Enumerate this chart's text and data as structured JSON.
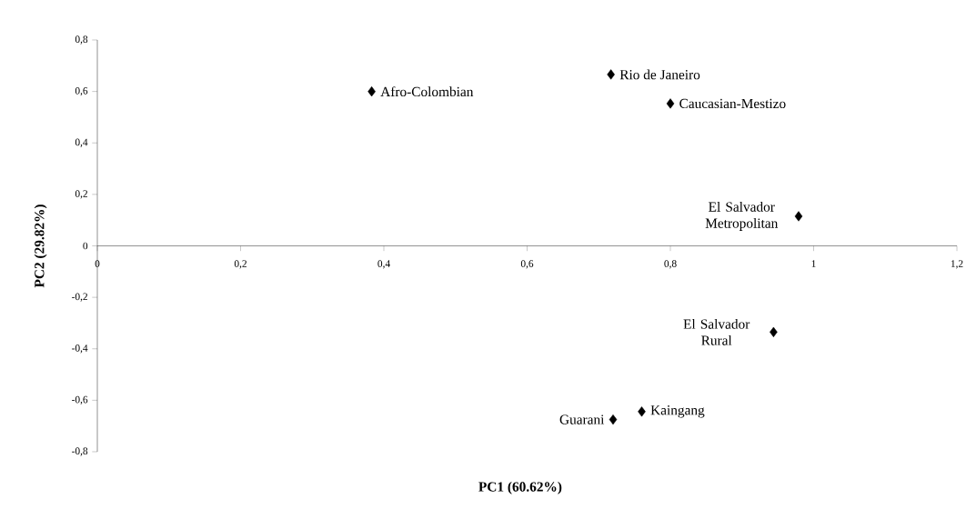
{
  "chart_data": {
    "type": "scatter",
    "xlabel": "PC1 (60.62%)",
    "ylabel": "PC2 (29.82%)",
    "color": "#000000",
    "marker": "diamond",
    "x": [
      0.383,
      0.717,
      0.8,
      0.979,
      0.944,
      0.76,
      0.72
    ],
    "values": [
      0.6,
      0.666,
      0.553,
      0.115,
      -0.335,
      -0.644,
      -0.675
    ],
    "xlim": [
      0,
      1.2
    ],
    "ylim": [
      -0.8,
      0.8
    ],
    "xticks": [
      0,
      {
        "value": 0.2,
        "label": "0,2"
      },
      {
        "value": 0.4,
        "label": "0,4"
      },
      {
        "value": 0.6,
        "label": "0,6"
      },
      {
        "value": 0.8,
        "label": "0,8"
      },
      1,
      {
        "value": 1.2,
        "label": "1,2"
      }
    ],
    "yticks": [
      {
        "value": -0.8,
        "label": "-0,8"
      },
      {
        "value": -0.6,
        "label": "-0,6"
      },
      {
        "value": -0.4,
        "label": "-0,4"
      },
      {
        "value": -0.2,
        "label": "-0,2"
      },
      0,
      {
        "value": 0.2,
        "label": "0,2"
      },
      {
        "value": 0.4,
        "label": "0,4"
      },
      {
        "value": 0.6,
        "label": "0,6"
      },
      {
        "value": 0.8,
        "label": "0,8"
      }
    ],
    "annotations": [
      {
        "text": "Afro-Colombian",
        "x": 0.383,
        "y": 0.6
      },
      {
        "text": "Rio de Janeiro",
        "x": 0.717,
        "y": 0.666
      },
      {
        "text": "Caucasian-Mestizo",
        "x": 0.8,
        "y": 0.553
      },
      {
        "text": "El Salvador Metropolitan",
        "x": 0.979,
        "y": 0.115
      },
      {
        "text": "El Salvador Rural",
        "x": 0.944,
        "y": -0.335
      },
      {
        "text": "Kaingang",
        "x": 0.76,
        "y": -0.644
      },
      {
        "text": "Guarani",
        "x": 0.72,
        "y": -0.675
      }
    ]
  }
}
